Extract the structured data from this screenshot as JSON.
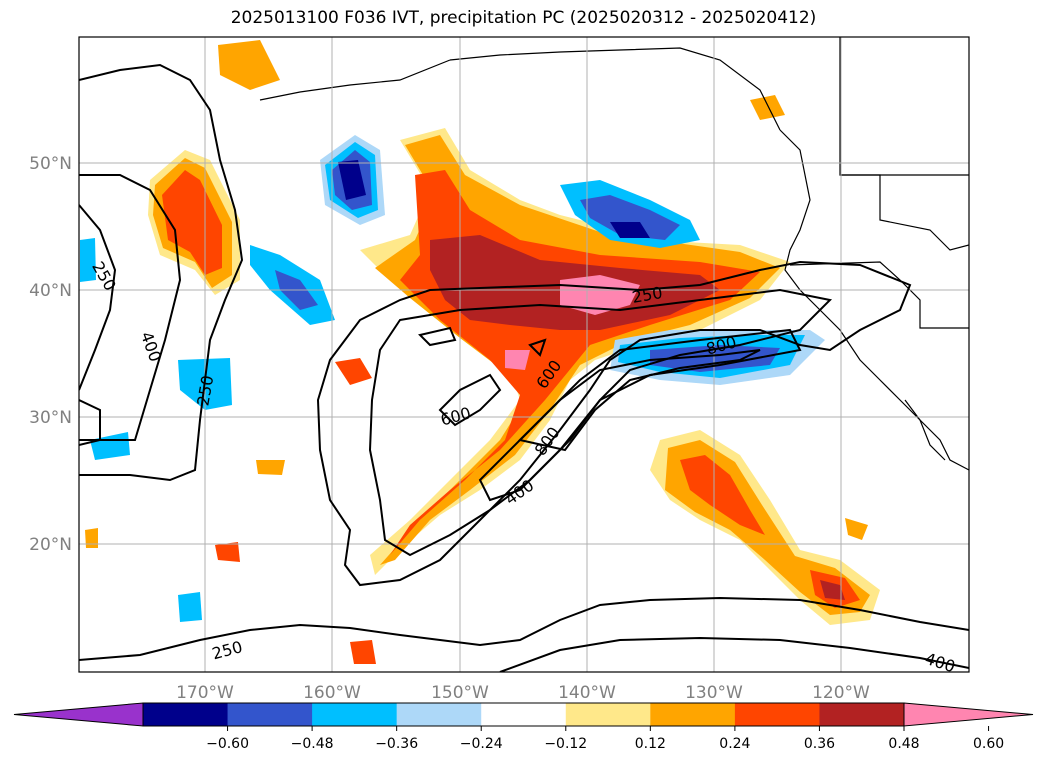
{
  "title": "2025013100 F036 IVT, precipitation PC (2025020312 - 2025020412)",
  "map": {
    "lat_ticks": [
      "50°N",
      "40°N",
      "30°N",
      "20°N"
    ],
    "lon_ticks": [
      "170°W",
      "160°W",
      "150°W",
      "140°W",
      "130°W",
      "120°W"
    ],
    "contour_labels": [
      "250",
      "400",
      "250",
      "250",
      "600",
      "800",
      "600",
      "800",
      "400",
      "250",
      "400"
    ]
  },
  "colorbar": {
    "labels": [
      "−0.60",
      "−0.48",
      "−0.36",
      "−0.24",
      "−0.12",
      "0.12",
      "0.24",
      "0.36",
      "0.48",
      "0.60"
    ],
    "colors": [
      "#9932cc",
      "#00008b",
      "#3355cc",
      "#00bfff",
      "#add8f8",
      "#ffffff",
      "#ffe88a",
      "#ffa500",
      "#ff4500",
      "#b22222",
      "#ff85b0"
    ]
  }
}
